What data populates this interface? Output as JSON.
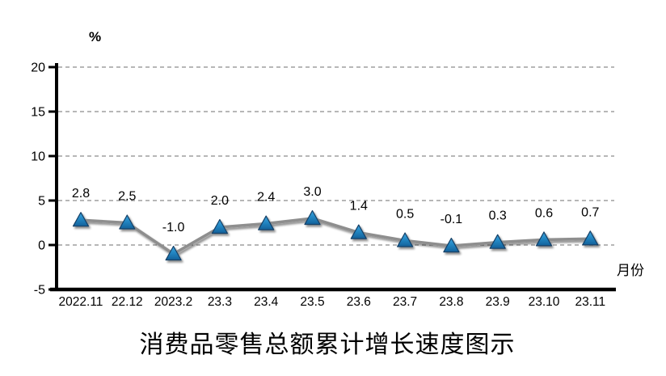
{
  "chart_data": {
    "type": "line",
    "title": "消费品零售总额累计增长速度图示",
    "ylabel": "%",
    "xlabel": "月份",
    "categories": [
      "2022.11",
      "22.12",
      "2023.2",
      "23.3",
      "23.4",
      "23.5",
      "23.6",
      "23.7",
      "23.8",
      "23.9",
      "23.10",
      "23.11"
    ],
    "values": [
      2.8,
      2.5,
      -1.0,
      2.0,
      2.4,
      3.0,
      1.4,
      0.5,
      -0.1,
      0.3,
      0.6,
      0.7
    ],
    "point_labels": [
      "2.8",
      "2.5",
      "-1.0",
      "2.0",
      "2.4",
      "3.0",
      "1.4",
      "0.5",
      "-0.1",
      "0.3",
      "0.6",
      "0.7"
    ],
    "ylim": [
      -5,
      20
    ],
    "yticks": [
      20,
      15,
      10,
      5,
      0,
      -5
    ],
    "grid": true,
    "legend": "none",
    "marker_shape": "triangle",
    "colors": {
      "line": "#8E8E8E",
      "marker_gradient_top": "#41A4DD",
      "marker_gradient_mid": "#2388C4",
      "marker_gradient_bottom": "#14619A",
      "marker_outline": "#123F66",
      "grid": "#8C8C8C",
      "axis": "#000000",
      "text": "#000000",
      "background": "#FFFFFF"
    }
  }
}
